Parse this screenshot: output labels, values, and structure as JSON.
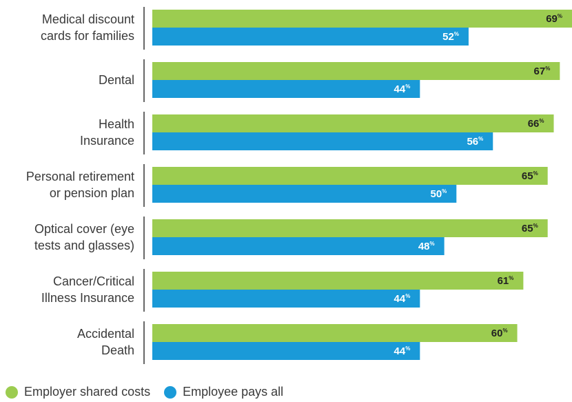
{
  "chart_data": {
    "type": "bar",
    "orientation": "horizontal",
    "categories": [
      [
        "Medical discount",
        "cards for families"
      ],
      [
        "Dental"
      ],
      [
        "Health",
        "Insurance"
      ],
      [
        "Personal retirement",
        "or pension plan"
      ],
      [
        "Optical cover (eye",
        "tests and glasses)"
      ],
      [
        "Cancer/Critical",
        "Illness Insurance"
      ],
      [
        "Accidental",
        "Death"
      ]
    ],
    "series": [
      {
        "name": "Employer shared costs",
        "color": "#9ccc50",
        "label_color": "#222222",
        "values": [
          69,
          67,
          66,
          65,
          65,
          61,
          60
        ]
      },
      {
        "name": "Employee pays all",
        "color": "#1a9ad8",
        "label_color": "#ffffff",
        "values": [
          52,
          44,
          56,
          50,
          48,
          44,
          44
        ]
      }
    ],
    "value_suffix": "%",
    "xlim": [
      0,
      69
    ],
    "grid": false,
    "legend_position": "bottom-left"
  }
}
